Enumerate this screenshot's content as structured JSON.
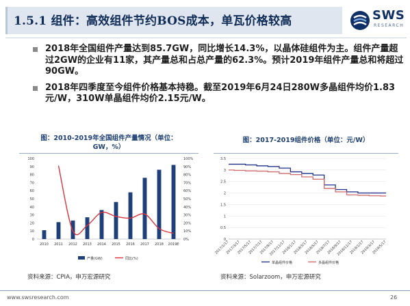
{
  "header": {
    "title": "1.5.1 组件：高效组件节约BOS成本，单瓦价格较高",
    "logo_text": "SWS",
    "logo_sub": "RESEARCH",
    "logo_colors": [
      "#0d2f66",
      "#2d63ad",
      "#7aa7d9"
    ]
  },
  "bullets": [
    {
      "text": "2018年全国组件产量达到85.7GW，同比增长14.3%，以晶体硅组件为主。组件产量超过2GW的企业有11家，其产量总和占总产量的62.3%。预计2019年组件产量总和将超过90GW。"
    },
    {
      "text": "2018年四季度至今组件价格基本持稳。截至2019年6月24日280W多晶组件均价1.83元/W，310W单晶组件均价2.15元/W。"
    }
  ],
  "figure_left": {
    "title_line1": "图：2010-2019年全国组件产量情况（单位：",
    "title_line2": "GW，%）",
    "source": "资料来源：CPIA，申万宏源研究"
  },
  "figure_right": {
    "title": "图：2017-2019组件价格（单位：元/W）",
    "source": "资料来源：Solarzoom，申万宏源研究"
  },
  "chart_data": [
    {
      "type": "bar",
      "categories": [
        "2010",
        "2011",
        "2012",
        "2013",
        "2014",
        "2015",
        "2016",
        "2017",
        "2018",
        "2019E"
      ],
      "series": [
        {
          "name": "产量(GW)",
          "type": "bar",
          "axis": "left",
          "values": [
            11,
            21,
            23,
            27,
            36,
            46,
            58,
            76,
            86,
            92
          ]
        },
        {
          "name": "同比(%)",
          "type": "line",
          "axis": "right",
          "values": [
            null,
            91,
            10,
            17,
            33,
            28,
            26,
            31,
            13,
            7
          ]
        }
      ],
      "ylim_left": [
        0,
        100
      ],
      "yticks_left": [
        "0",
        "10",
        "20",
        "30",
        "40",
        "50",
        "60",
        "70",
        "80",
        "90",
        "100"
      ],
      "ylim_right": [
        0,
        100
      ],
      "yticks_right": [
        "0%",
        "10%",
        "20%",
        "30%",
        "40%",
        "50%",
        "60%",
        "70%",
        "80%",
        "90%",
        "100%"
      ],
      "colors": {
        "bar": "#1f3f7a",
        "line": "#d8323c"
      },
      "legend_position": "bottom",
      "grid": false
    },
    {
      "type": "line",
      "x": [
        "2017/1/17",
        "2017/3/17",
        "2017/5/17",
        "2017/7/17",
        "2017/9/17",
        "2017/11/17",
        "2018/1/17",
        "2018/3/17",
        "2018/5/17",
        "2018/7/17",
        "2018/9/17",
        "2018/11/17",
        "2019/1/17",
        "2019/3/17",
        "2019/5/17"
      ],
      "series": [
        {
          "name": "单晶组件价格",
          "color": "#1f2f8a",
          "values": [
            3.25,
            3.25,
            3.22,
            3.18,
            3.15,
            3.08,
            2.92,
            2.85,
            2.78,
            2.35,
            2.15,
            2.05,
            2.0,
            2.0,
            2.0
          ]
        },
        {
          "name": "多晶组件价格",
          "color": "#d06a6a",
          "values": [
            3.0,
            2.98,
            2.96,
            2.95,
            2.92,
            2.85,
            2.8,
            2.7,
            2.6,
            2.2,
            2.05,
            1.92,
            1.9,
            1.88,
            1.87
          ]
        }
      ],
      "ylim": [
        0,
        3.5
      ],
      "yticks": [
        "0",
        "0.5",
        "1",
        "1.5",
        "2",
        "2.5",
        "3",
        "3.5"
      ],
      "legend_position": "bottom",
      "grid": true
    }
  ],
  "footer": {
    "url": "www.swsresearch.com",
    "page": "26"
  }
}
